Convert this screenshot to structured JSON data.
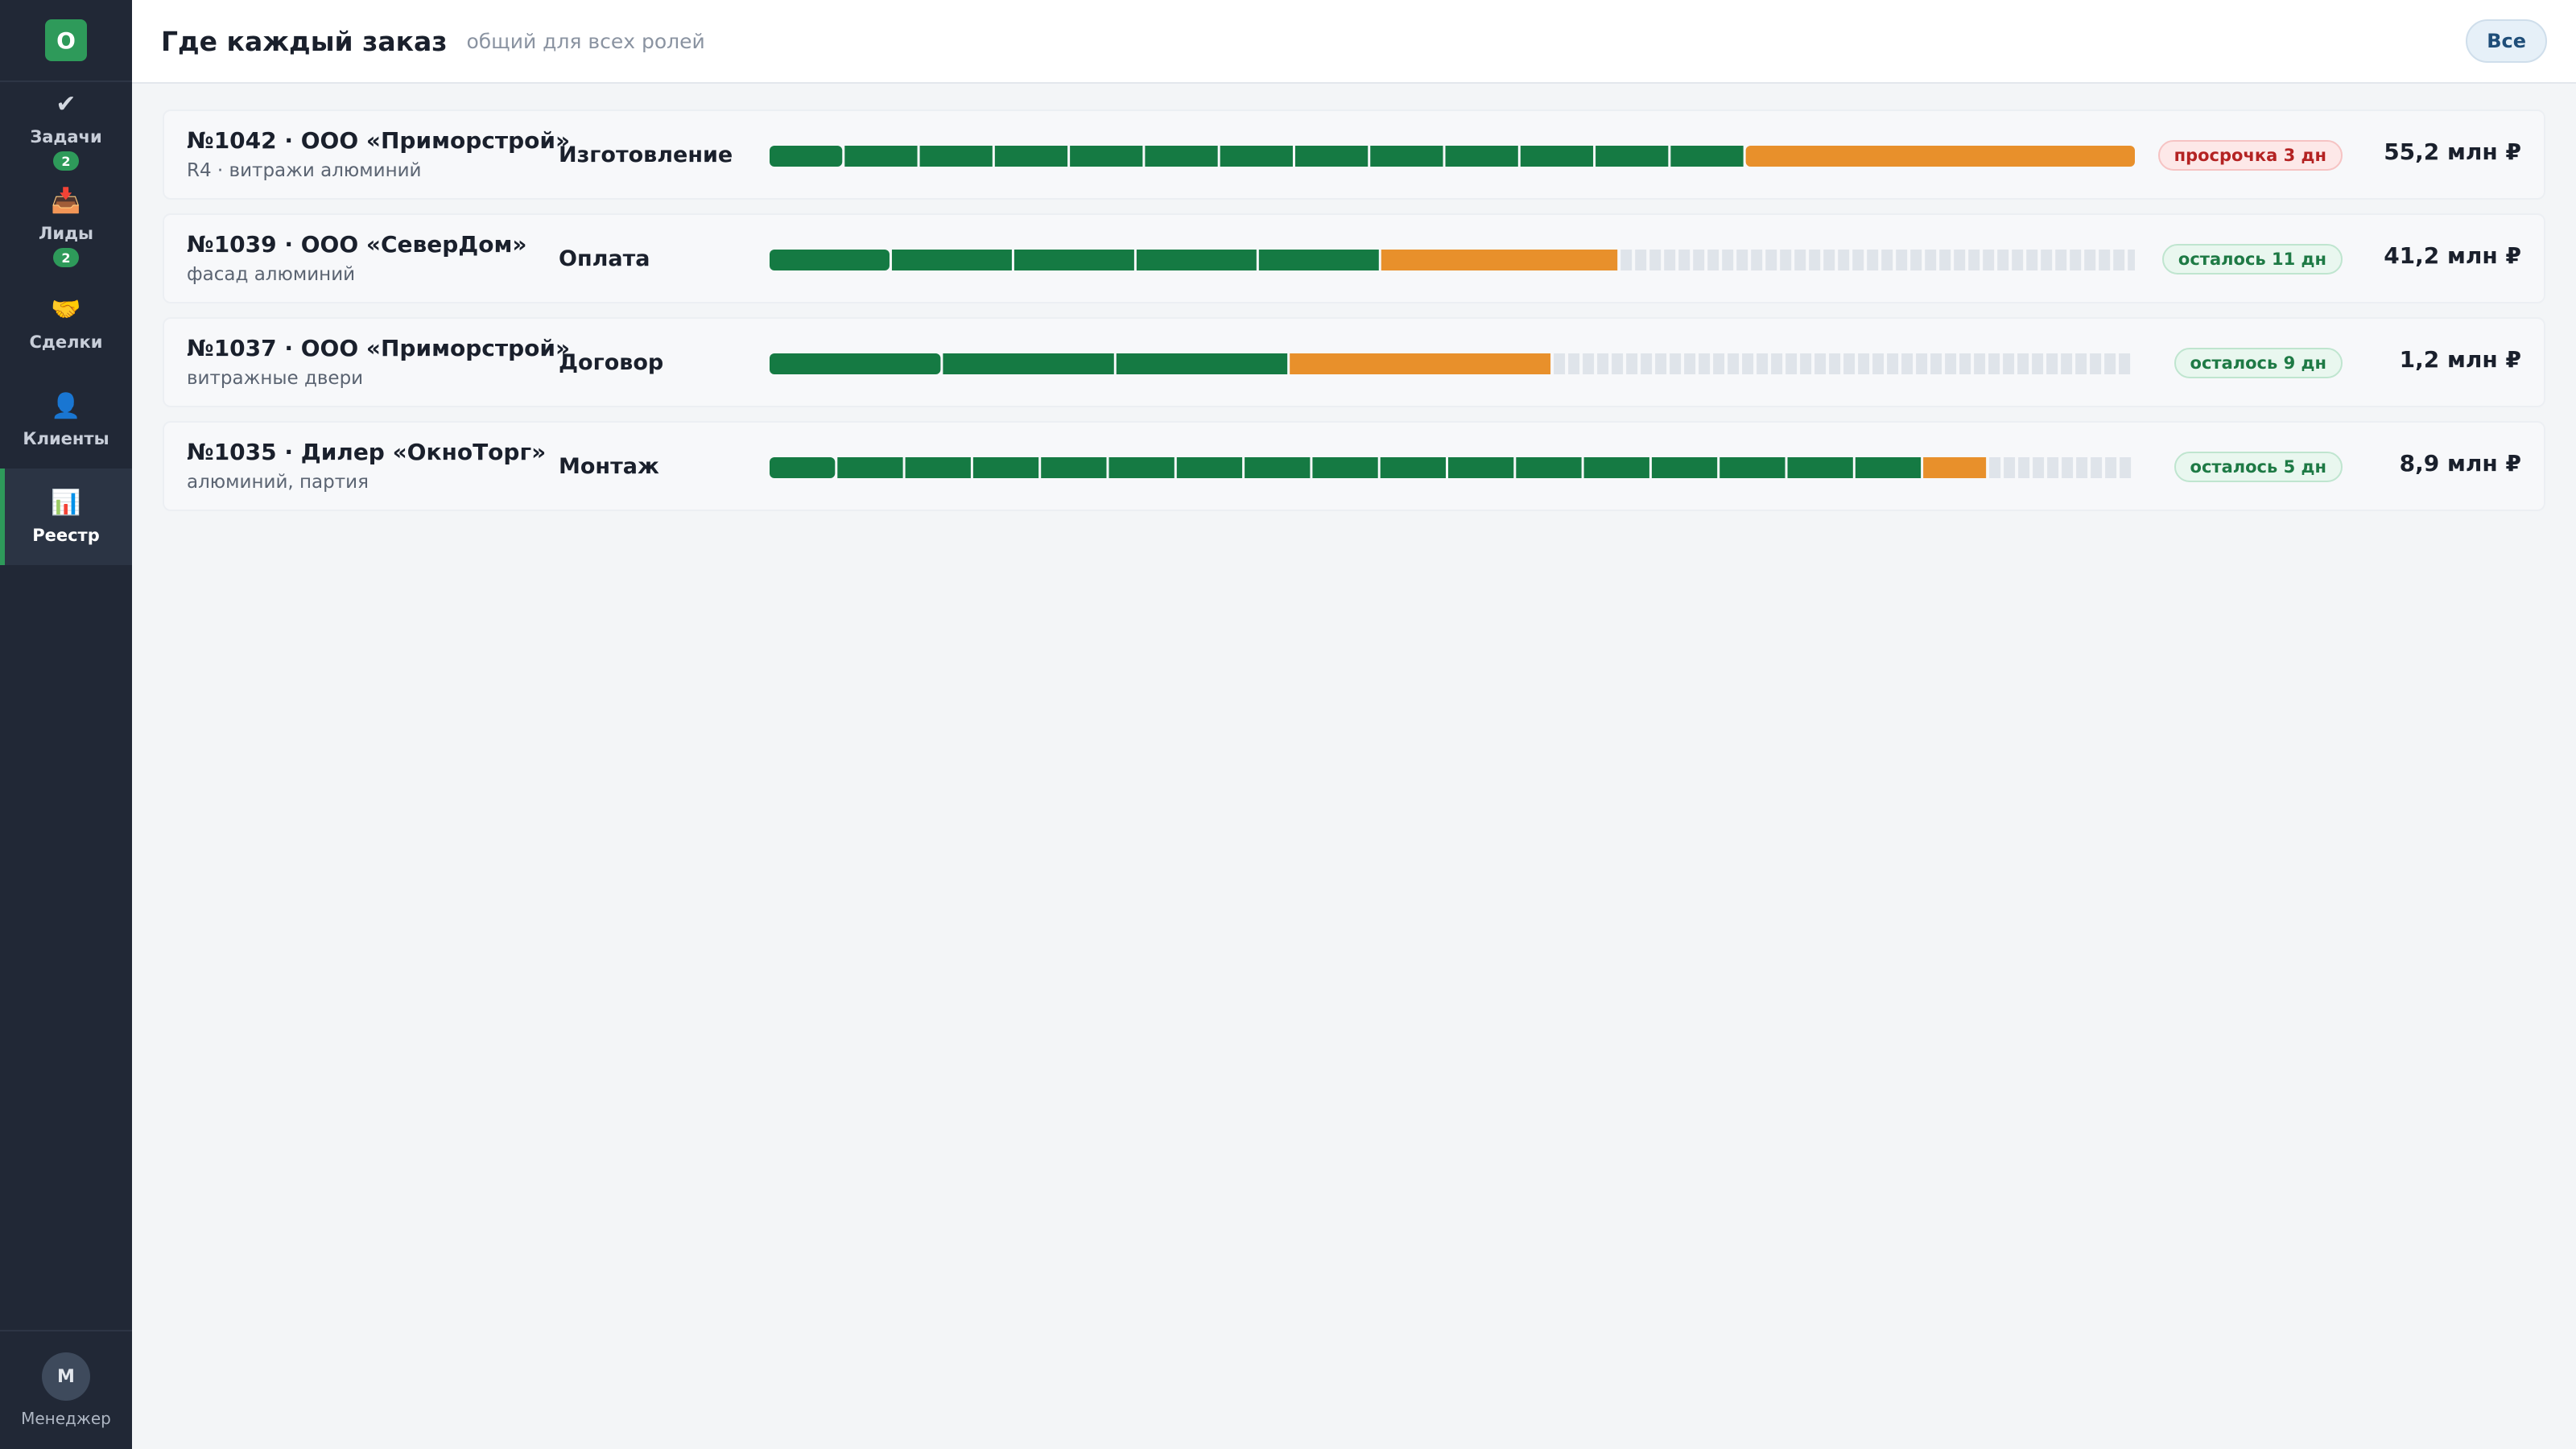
{
  "sidebar": {
    "logo": "O",
    "items": [
      {
        "icon": "check-icon",
        "glyph": "✔",
        "label": "Задачи",
        "count": "2"
      },
      {
        "icon": "inbox-icon",
        "glyph": "📥",
        "label": "Лиды",
        "count": "2"
      },
      {
        "icon": "handshake-icon",
        "glyph": "🤝",
        "label": "Сделки",
        "count": ""
      },
      {
        "icon": "user-icon",
        "glyph": "👤",
        "label": "Клиенты",
        "count": ""
      },
      {
        "icon": "chart-icon",
        "glyph": "📊",
        "label": "Реестр",
        "count": ""
      }
    ],
    "user": {
      "initial": "М",
      "role": "Менеджер"
    }
  },
  "header": {
    "title": "Где каждый заказ",
    "subtitle": "общий для всех ролей",
    "filter_label": "Все"
  },
  "colors": {
    "done": "#157a43",
    "current": "#e8902b",
    "pending": "#dfe4ea",
    "accent": "#2e9a5a"
  },
  "orders": [
    {
      "title": "№1042 · ООО «Приморстрой»",
      "subtitle": "R4 · витражи алюминий",
      "stage": "Изготовление",
      "progress": {
        "done": 0.715,
        "current": 0.285,
        "done_segments": 13
      },
      "badge": "просрочка 3 дн",
      "badge_type": "late",
      "amount": "55,2 млн ₽"
    },
    {
      "title": "№1039 · ООО «СеверДом»",
      "subtitle": "фасад алюминий",
      "stage": "Оплата",
      "progress": {
        "done": 0.448,
        "current": 0.173,
        "done_segments": 5
      },
      "badge": "осталось 11 дн",
      "badge_type": "ok",
      "amount": "41,2 млн ₽"
    },
    {
      "title": "№1037 · ООО «Приморстрой»",
      "subtitle": "витражные двери",
      "stage": "Договор",
      "progress": {
        "done": 0.381,
        "current": 0.191,
        "done_segments": 3
      },
      "badge": "осталось 9 дн",
      "badge_type": "ok",
      "amount": "1,2 млн ₽"
    },
    {
      "title": "№1035 · Дилер «ОкноТорг»",
      "subtitle": "алюминий, партия",
      "stage": "Монтаж",
      "progress": {
        "done": 0.845,
        "current": 0.046,
        "done_segments": 17
      },
      "badge": "осталось 5 дн",
      "badge_type": "ok",
      "amount": "8,9 млн ₽"
    }
  ]
}
